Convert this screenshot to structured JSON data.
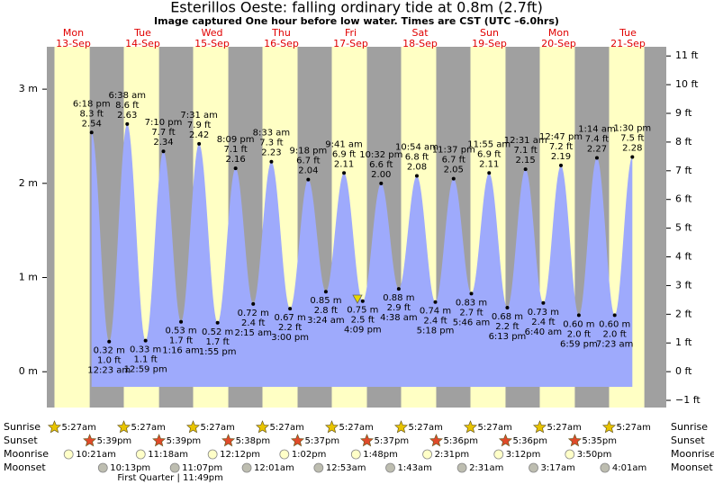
{
  "chart_data": {
    "type": "tide",
    "title": "Esterillos Oeste: falling  ordinary tide at 0.8m (2.7ft)",
    "subtitle": "Image captured One hour before low water. Times are CST (UTC –6.0hrs)",
    "ylim": [
      -0.38,
      3.45
    ],
    "yticks": [
      {
        "value": 0,
        "label": "0 m"
      },
      {
        "value": 1,
        "label": "1 m"
      },
      {
        "value": 2,
        "label": "2 m"
      },
      {
        "value": 3,
        "label": "3 m"
      }
    ],
    "y2lim": [
      -1.25,
      11.32
    ],
    "y2ticks": [
      {
        "value": -1,
        "label": "−1 ft"
      },
      {
        "value": 0,
        "label": "0 ft"
      },
      {
        "value": 1,
        "label": "1 ft"
      },
      {
        "value": 2,
        "label": "2 ft"
      },
      {
        "value": 3,
        "label": "3 ft"
      },
      {
        "value": 4,
        "label": "4 ft"
      },
      {
        "value": 5,
        "label": "5 ft"
      },
      {
        "value": 6,
        "label": "6 ft"
      },
      {
        "value": 7,
        "label": "7 ft"
      },
      {
        "value": 8,
        "label": "8 ft"
      },
      {
        "value": 9,
        "label": "9 ft"
      },
      {
        "value": 10,
        "label": "10 ft"
      },
      {
        "value": 11,
        "label": "11 ft"
      }
    ],
    "row_labels": [
      "Sunrise",
      "Sunset",
      "Moonrise",
      "Moonset"
    ],
    "days": [
      {
        "weekday": "Mon",
        "date": "13-Sep",
        "sunrise": "5:27am",
        "sunset": "5:39pm",
        "moonrise": "10:21am",
        "moonset": "10:13pm",
        "tides": [
          {
            "time": "6:18 pm",
            "m": 2.54,
            "ft": "8.3 ft"
          }
        ]
      },
      {
        "weekday": "Tue",
        "date": "14-Sep",
        "sunrise": "5:27am",
        "sunset": "5:39pm",
        "moonrise": "11:18am",
        "moonset": "11:07pm",
        "moon_phase": "First Quarter | 11:49pm",
        "tides": [
          {
            "time": "12:23 am",
            "m": 0.32,
            "m_label": "0.32 m",
            "ft": "1.0 ft"
          },
          {
            "time": "6:38 am",
            "m": 2.63,
            "ft": "8.6 ft"
          },
          {
            "time": "12:59 pm",
            "m": 0.33,
            "m_label": "0.33 m",
            "ft": "1.1 ft"
          },
          {
            "time": "7:10 pm",
            "m": 2.34,
            "ft": "7.7 ft"
          }
        ]
      },
      {
        "weekday": "Wed",
        "date": "15-Sep",
        "sunrise": "5:27am",
        "sunset": "5:38pm",
        "moonrise": "12:12pm",
        "tides": [
          {
            "time": "1:16 am",
            "m": 0.53,
            "m_label": "0.53 m",
            "ft": "1.7 ft"
          },
          {
            "time": "7:31 am",
            "m": 2.42,
            "ft": "7.9 ft"
          },
          {
            "time": "1:55 pm",
            "m": 0.52,
            "m_label": "0.52 m",
            "ft": "1.7 ft"
          },
          {
            "time": "8:09 pm",
            "m": 2.16,
            "ft": "7.1 ft"
          }
        ]
      },
      {
        "weekday": "Thu",
        "date": "16-Sep",
        "sunrise": "5:27am",
        "sunset": "5:37pm",
        "moonrise": "1:02pm",
        "moonset": "12:01am",
        "tides": [
          {
            "time": "2:15 am",
            "m": 0.72,
            "m_label": "0.72 m",
            "ft": "2.4 ft"
          },
          {
            "time": "8:33 am",
            "m": 2.23,
            "ft": "7.3 ft"
          },
          {
            "time": "3:00 pm",
            "m": 0.67,
            "m_label": "0.67 m",
            "ft": "2.2 ft"
          },
          {
            "time": "9:18 pm",
            "m": 2.04,
            "ft": "6.7 ft"
          }
        ]
      },
      {
        "weekday": "Fri",
        "date": "17-Sep",
        "sunrise": "5:27am",
        "sunset": "5:37pm",
        "moonrise": "1:48pm",
        "moonset": "12:53am",
        "tides": [
          {
            "time": "3:24 am",
            "m": 0.85,
            "m_label": "0.85 m",
            "ft": "2.8 ft"
          },
          {
            "time": "9:41 am",
            "m": 2.11,
            "ft": "6.9 ft"
          },
          {
            "time": "4:09 pm",
            "m": 0.75,
            "m_label": "0.75 m",
            "ft": "2.5 ft"
          },
          {
            "time": "10:32 pm",
            "m": 2.0,
            "m_label": "2.00",
            "ft": "6.6 ft"
          }
        ]
      },
      {
        "weekday": "Sat",
        "date": "18-Sep",
        "sunrise": "5:27am",
        "sunset": "5:36pm",
        "moonrise": "2:31pm",
        "moonset": "1:43am",
        "tides": [
          {
            "time": "4:38 am",
            "m": 0.88,
            "m_label": "0.88 m",
            "ft": "2.9 ft"
          },
          {
            "time": "10:54 am",
            "m": 2.08,
            "ft": "6.8 ft"
          },
          {
            "time": "5:18 pm",
            "m": 0.74,
            "m_label": "0.74 m",
            "ft": "2.4 ft"
          },
          {
            "time": "11:37 pm",
            "m": 2.05,
            "ft": "6.7 ft"
          }
        ]
      },
      {
        "weekday": "Sun",
        "date": "19-Sep",
        "sunrise": "5:27am",
        "sunset": "5:36pm",
        "moonrise": "3:12pm",
        "moonset": "2:31am",
        "tides": [
          {
            "time": "5:46 am",
            "m": 0.83,
            "m_label": "0.83 m",
            "ft": "2.7 ft"
          },
          {
            "time": "11:55 am",
            "m": 2.11,
            "ft": "6.9 ft"
          },
          {
            "time": "6:13 pm",
            "m": 0.68,
            "m_label": "0.68 m",
            "ft": "2.2 ft"
          }
        ]
      },
      {
        "weekday": "Mon",
        "date": "20-Sep",
        "sunrise": "5:27am",
        "sunset": "5:35pm",
        "moonrise": "3:50pm",
        "moonset": "3:17am",
        "tides": [
          {
            "time": "12:31 am",
            "m": 2.15,
            "ft": "7.1 ft"
          },
          {
            "time": "6:40 am",
            "m": 0.73,
            "m_label": "0.73 m",
            "ft": "2.4 ft"
          },
          {
            "time": "12:47 pm",
            "m": 2.19,
            "ft": "7.2 ft"
          },
          {
            "time": "6:59 pm",
            "m": 0.6,
            "m_label": "0.60 m",
            "ft": "2.0 ft"
          }
        ]
      },
      {
        "weekday": "Tue",
        "date": "21-Sep",
        "sunrise": "5:27am",
        "moonset": "4:01am",
        "tides": [
          {
            "time": "1:14 am",
            "m": 2.27,
            "ft": "7.4 ft"
          },
          {
            "time": "7:23 am",
            "m": 0.6,
            "m_label": "0.60 m",
            "ft": "2.0 ft"
          },
          {
            "time": "1:30 pm",
            "m": 2.28,
            "ft": "7.5 ft"
          }
        ]
      }
    ]
  }
}
